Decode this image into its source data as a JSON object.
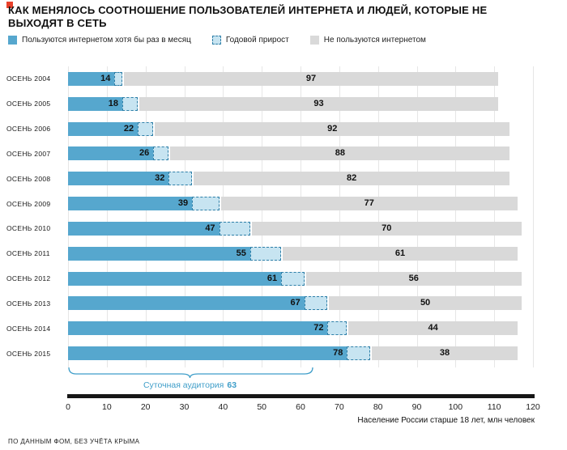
{
  "title": "КАК МЕНЯЛОСЬ СООТНОШЕНИЕ ПОЛЬЗОВАТЕЛЕЙ ИНТЕРНЕТА И ЛЮДЕЙ, КОТОРЫЕ НЕ ВЫХОДЯТ В СЕТЬ",
  "legend": [
    {
      "label": "Пользуются интернетом хотя бы раз в месяц",
      "type": "solid"
    },
    {
      "label": "Годовой прирост",
      "type": "dashed"
    },
    {
      "label": "Не пользуются интернетом",
      "type": "gray"
    }
  ],
  "chart_data": {
    "type": "bar",
    "orientation": "horizontal-stacked",
    "title": "КАК МЕНЯЛОСЬ СООТНОШЕНИЕ ПОЛЬЗОВАТЕЛЕЙ ИНТЕРНЕТА И ЛЮДЕЙ, КОТОРЫЕ НЕ ВЫХОДЯТ В СЕТЬ",
    "categories": [
      "ОСЕНЬ 2004",
      "ОСЕНЬ 2005",
      "ОСЕНЬ 2006",
      "ОСЕНЬ 2007",
      "ОСЕНЬ 2008",
      "ОСЕНЬ 2009",
      "ОСЕНЬ 2010",
      "ОСЕНЬ 2011",
      "ОСЕНЬ 2012",
      "ОСЕНЬ 2013",
      "ОСЕНЬ 2014",
      "ОСЕНЬ 2015"
    ],
    "series": [
      {
        "name": "Пользуются интернетом хотя бы раз в месяц",
        "values": [
          14,
          18,
          22,
          26,
          32,
          39,
          47,
          55,
          61,
          67,
          72,
          78
        ]
      },
      {
        "name": "Годовой прирост",
        "values": [
          2,
          4,
          4,
          4,
          6,
          7,
          8,
          8,
          6,
          6,
          5,
          6
        ]
      },
      {
        "name": "Не пользуются интернетом",
        "values": [
          97,
          93,
          92,
          88,
          82,
          77,
          70,
          61,
          56,
          50,
          44,
          38
        ]
      }
    ],
    "xlim": [
      0,
      120
    ],
    "xticks": [
      0,
      10,
      20,
      30,
      40,
      50,
      60,
      70,
      80,
      90,
      100,
      110,
      120
    ],
    "xlabel": "Население России старше 18 лет, млн человек",
    "grid": true,
    "legend_position": "top",
    "annotation": {
      "label": "Суточная аудитория",
      "value": "63",
      "span_from": 0,
      "span_to": 63
    }
  },
  "footer": "ПО ДАННЫМ ФОМ, БЕЗ УЧЁТА КРЫМА",
  "colors": {
    "brand": "#e8402a",
    "users": "#56a7ce",
    "growth_fill": "#c7e4f1",
    "growth_border": "#2e7fa8",
    "nonusers": "#d9d9d9",
    "accent_text": "#3f9ec9",
    "axis": "#161616"
  }
}
